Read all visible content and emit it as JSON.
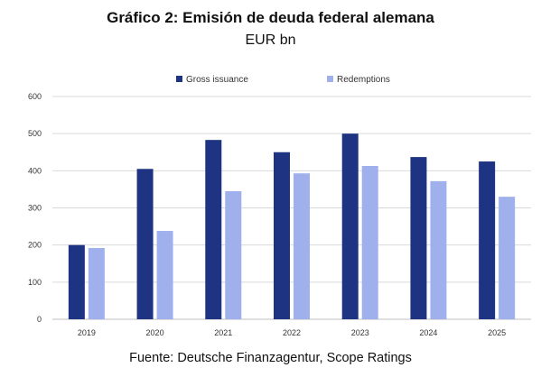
{
  "title": "Gráfico 2: Emisión de deuda federal alemana",
  "subtitle": "EUR bn",
  "source": "Fuente: Deutsche Finanzagentur, Scope Ratings",
  "chart_data": {
    "type": "bar",
    "categories": [
      "2019",
      "2020",
      "2021",
      "2022",
      "2023",
      "2024",
      "2025"
    ],
    "series": [
      {
        "name": "Gross issuance",
        "color": "#1f3383",
        "values": [
          200,
          405,
          483,
          450,
          500,
          437,
          425
        ]
      },
      {
        "name": "Redemptions",
        "color": "#9fb0ec",
        "values": [
          192,
          238,
          345,
          393,
          413,
          372,
          330
        ]
      }
    ],
    "ylim": [
      0,
      600
    ],
    "yticks": [
      "0",
      "100",
      "200",
      "300",
      "400",
      "500",
      "600"
    ],
    "grid": true,
    "legend": "top"
  }
}
